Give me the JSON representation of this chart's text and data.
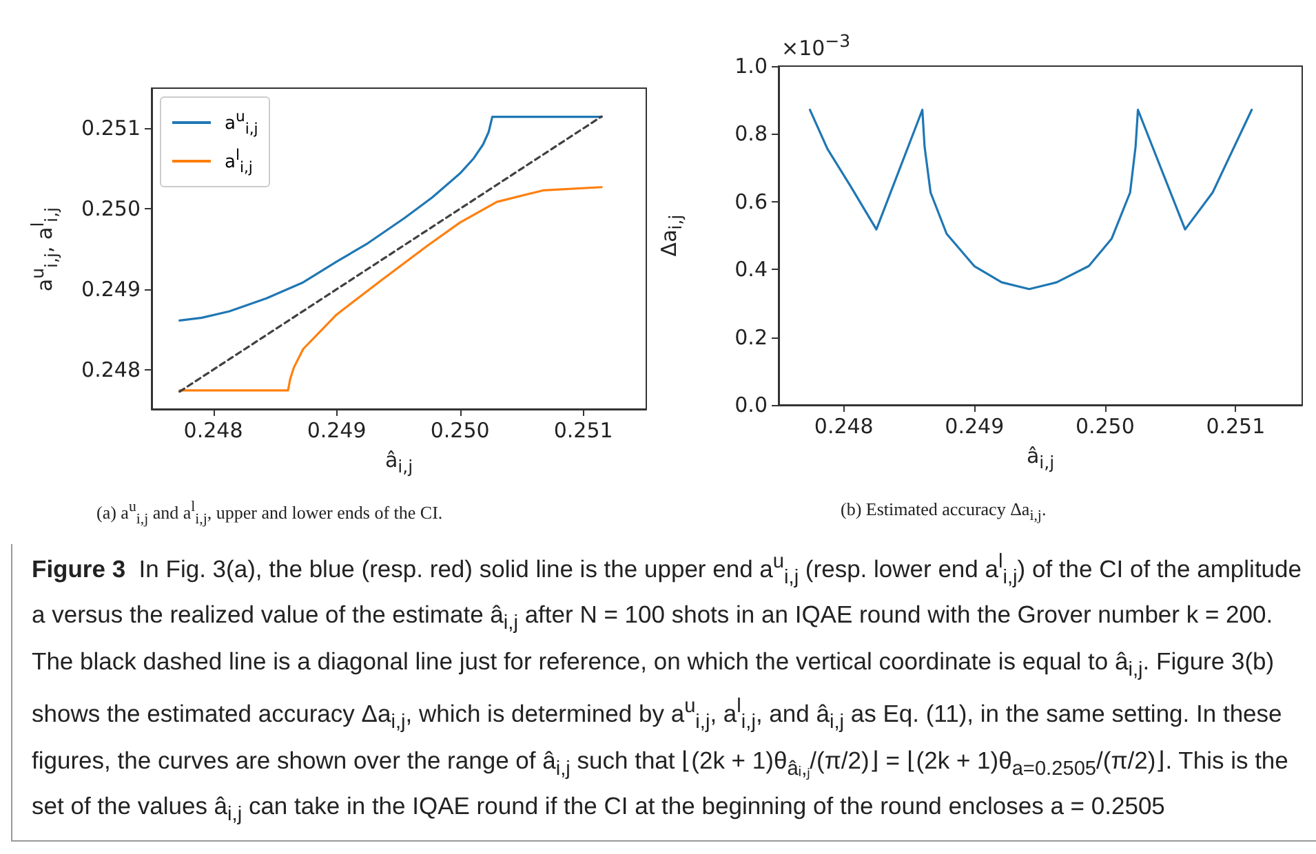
{
  "chart_data": [
    {
      "type": "line",
      "xlabel": "â$_{i,j}$",
      "ylabel": "a$^{u}$$_{i,j}$, a$^{l}$$_{i,j}$",
      "xlim": [
        0.2475,
        0.25151
      ],
      "xticks": [
        {
          "value": 0.248,
          "label": "0.248"
        },
        {
          "value": 0.249,
          "label": "0.249"
        },
        {
          "value": 0.25,
          "label": "0.250"
        },
        {
          "value": 0.251,
          "label": "0.251"
        }
      ],
      "ylim": [
        0.24751,
        0.2515
      ],
      "yticks": [
        {
          "value": 0.248,
          "label": "0.248"
        },
        {
          "value": 0.249,
          "label": "0.249"
        },
        {
          "value": 0.25,
          "label": "0.250"
        },
        {
          "value": 0.251,
          "label": "0.251"
        }
      ],
      "grid": false,
      "legend": "top left",
      "marker": "none",
      "series": [
        {
          "name": "a$^{u}$$_{i,j}$",
          "color": "#1f77b4",
          "x": [
            0.247727,
            0.247907,
            0.248131,
            0.24843,
            0.248729,
            0.249,
            0.249252,
            0.249551,
            0.249776,
            0.25,
            0.250112,
            0.250187,
            0.250232,
            0.250262,
            0.251148
          ],
          "values": [
            0.248611,
            0.248646,
            0.248726,
            0.248886,
            0.249086,
            0.249343,
            0.249571,
            0.249886,
            0.250143,
            0.25044,
            0.250629,
            0.2508,
            0.250954,
            0.251143,
            0.251143
          ]
        },
        {
          "name": "a$^{l}$$_{i,j}$",
          "color": "#ff7f0e",
          "x": [
            0.247727,
            0.248606,
            0.248624,
            0.248654,
            0.248729,
            0.249,
            0.249364,
            0.249738,
            0.25,
            0.250299,
            0.250673,
            0.251148
          ],
          "values": [
            0.247743,
            0.247743,
            0.247886,
            0.248029,
            0.248257,
            0.248686,
            0.249114,
            0.249543,
            0.249829,
            0.250086,
            0.250229,
            0.250269
          ]
        },
        {
          "color": "#404040",
          "line_style": "dashed",
          "x": [
            0.247727,
            0.251148
          ],
          "values": [
            0.247727,
            0.251148
          ]
        }
      ],
      "annotations": [
        "(a) a$^{u}$$_{i,j}$ and a$^{l}$$_{i,j}$, upper and lower ends of the CI."
      ]
    },
    {
      "type": "line",
      "xlabel": "â$_{i,j}$",
      "ylabel": "Δa$_{i,j}$",
      "xlim": [
        0.2475,
        0.25151
      ],
      "xticks": [
        {
          "value": 0.248,
          "label": "0.248"
        },
        {
          "value": 0.249,
          "label": "0.249"
        },
        {
          "value": 0.25,
          "label": "0.250"
        },
        {
          "value": 0.251,
          "label": "0.251"
        }
      ],
      "ylim": [
        0,
        1
      ],
      "yticks": [
        {
          "value": 0,
          "label": "0.0"
        },
        0.2,
        0.4,
        0.6,
        0.8,
        {
          "value": 1,
          "label": "1.0"
        }
      ],
      "grid": false,
      "marker": "none",
      "series": [
        {
          "color": "#1f77b4",
          "x": [
            0.24774,
            0.247874,
            0.248049,
            0.248249,
            0.248601,
            0.248618,
            0.248664,
            0.248787,
            0.248998,
            0.249208,
            0.249419,
            0.24963,
            0.249876,
            0.250051,
            0.250192,
            0.250234,
            0.250252,
            0.250613,
            0.250824,
            0.251123
          ],
          "values": [
            0.871,
            0.756,
            0.647,
            0.518,
            0.871,
            0.763,
            0.627,
            0.505,
            0.41,
            0.362,
            0.342,
            0.362,
            0.41,
            0.491,
            0.627,
            0.763,
            0.871,
            0.518,
            0.627,
            0.871
          ]
        }
      ],
      "annotations": [
        "×10$^{−3}$",
        "(b) Estimated accuracy Δa$_{i,j}$.",
        "Figure 3",
        "In Fig. 3(a), the blue (resp. red) solid line is the upper end a$^{u}$$_{i,j}$ (resp. lower end a$^{l}$$_{i,j}$) of the CI of the amplitude a versus the realized value of the estimate â$_{i,j}$ after N = 100 shots in an IQAE round with the Grover number k = 200. The black dashed line is a diagonal line just for reference, on which the vertical coordinate is equal to â$_{i,j}$. Figure 3(b) shows the estimated accuracy Δa$_{i,j}$, which is determined by a$^{u}$$_{i,j}$, a$^{l}$$_{i,j}$, and â$_{i,j}$ as Eq. (11), in the same setting. In these figures, the curves are shown over the range of â$_{i,j}$ such that ⌊(2k + 1)θ$_{âᵢ,ⱼ}$/(π/2)⌋ = ⌊(2k + 1)θ$_{a=0.2505}$/(π/2)⌋. This is the set of the values â$_{i,j}$ can take in the IQAE round if the CI at the beginning of the round encloses a = 0.2505"
      ]
    }
  ]
}
